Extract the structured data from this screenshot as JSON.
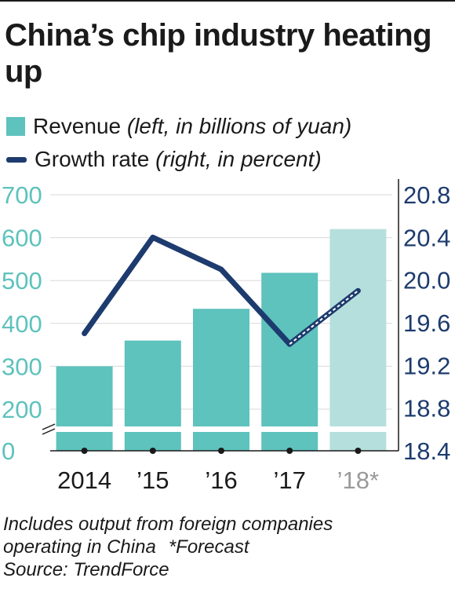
{
  "title": "China’s chip industry heating up",
  "legend": {
    "revenue_label": "Revenue",
    "revenue_note": "(left, in billions of yuan)",
    "growth_label": "Growth rate",
    "growth_note": "(right, in percent)"
  },
  "notes": {
    "line1": "Includes output from foreign companies",
    "line2": "operating in China",
    "line2b": "*Forecast",
    "source": "Source: TrendForce"
  },
  "colors": {
    "bar": "#5ec2bd",
    "bar_forecast": "#b5dfdc",
    "line": "#1d3b6e",
    "left_axis_text": "#5ec2bd",
    "right_axis_text": "#1d3b6e",
    "forecast_tick_text": "#9a9a9a"
  },
  "chart_data": {
    "type": "bar+line",
    "categories": [
      "2014",
      "’15",
      "’16",
      "’17",
      "’18*"
    ],
    "forecast_index": 4,
    "left_axis": {
      "ticks": [
        "700",
        "600",
        "500",
        "400",
        "300",
        "200",
        "0"
      ],
      "range": [
        0,
        700
      ],
      "axis_break": true
    },
    "right_axis": {
      "ticks": [
        "20.8",
        "20.4",
        "20.0",
        "19.6",
        "19.2",
        "18.8",
        "18.4"
      ],
      "range": [
        18.4,
        20.8
      ]
    },
    "series": [
      {
        "name": "Revenue",
        "axis": "left",
        "type": "bar",
        "values": [
          300,
          360,
          434,
          518,
          620
        ]
      },
      {
        "name": "Growth rate",
        "axis": "right",
        "type": "line",
        "values": [
          19.5,
          20.4,
          20.1,
          19.4,
          19.9
        ],
        "dashed_from_index": 3
      }
    ]
  }
}
